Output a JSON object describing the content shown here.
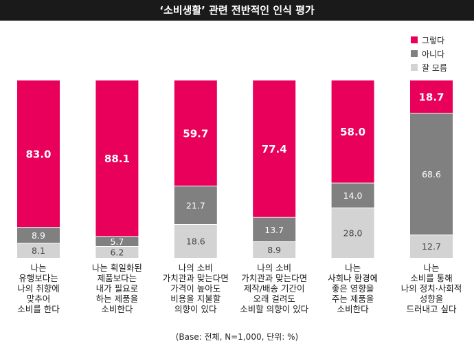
{
  "header": {
    "title": "‘소비생활’ 관련 전반적인 인식 평가"
  },
  "footnote": "(Base: 전체, N=1,000, 단위: %)",
  "colors": {
    "yes": "#e8005a",
    "no": "#808080",
    "unknown": "#d3d3d3"
  },
  "chart_data": {
    "type": "bar",
    "stacked": true,
    "orientation": "vertical",
    "title": "‘소비생활’ 관련 전반적인 인식 평가",
    "categories": [
      [
        "나는",
        "유행보다는",
        "나의 취향에",
        "맞추어",
        "소비를 한다"
      ],
      [
        "나는 획일화된",
        "제품보다는",
        "내가 필요로",
        "하는 제품을",
        "소비한다"
      ],
      [
        "나의 소비",
        "가치관과 맞는다면",
        "가격이 높아도",
        "비용을 지불할",
        "의향이 있다"
      ],
      [
        "나의 소비",
        "가치관과 맞는다면",
        "제작/배송 기간이",
        "오래 걸려도",
        "소비할 의향이 있다"
      ],
      [
        "나는",
        "사회나 환경에",
        "좋은 영향을",
        "주는 제품을",
        "소비한다"
      ],
      [
        "나는",
        "소비를 통해",
        "나의 정치·사회적",
        "성향을",
        "드러내고 싶다"
      ]
    ],
    "series": [
      {
        "name": "그렇다",
        "color": "#e8005a",
        "values": [
          83.0,
          88.1,
          59.7,
          77.4,
          58.0,
          18.7
        ],
        "labels": [
          "83.0",
          "88.1",
          "59.7",
          "77.4",
          "58.0",
          "18.7"
        ]
      },
      {
        "name": "아니다",
        "color": "#808080",
        "values": [
          8.9,
          5.7,
          21.7,
          13.7,
          14.0,
          68.6
        ],
        "labels": [
          "8.9",
          "5.7",
          "21.7",
          "13.7",
          "14.0",
          "68.6"
        ]
      },
      {
        "name": "잘 모름",
        "color": "#d3d3d3",
        "values": [
          8.1,
          6.2,
          18.6,
          8.9,
          28.0,
          12.7
        ],
        "labels": [
          "8.1",
          "6.2",
          "18.6",
          "8.9",
          "28.0",
          "12.7"
        ]
      }
    ],
    "ylim": [
      0,
      100
    ],
    "unit": "%",
    "legend_position": "top-right",
    "grid": false
  }
}
